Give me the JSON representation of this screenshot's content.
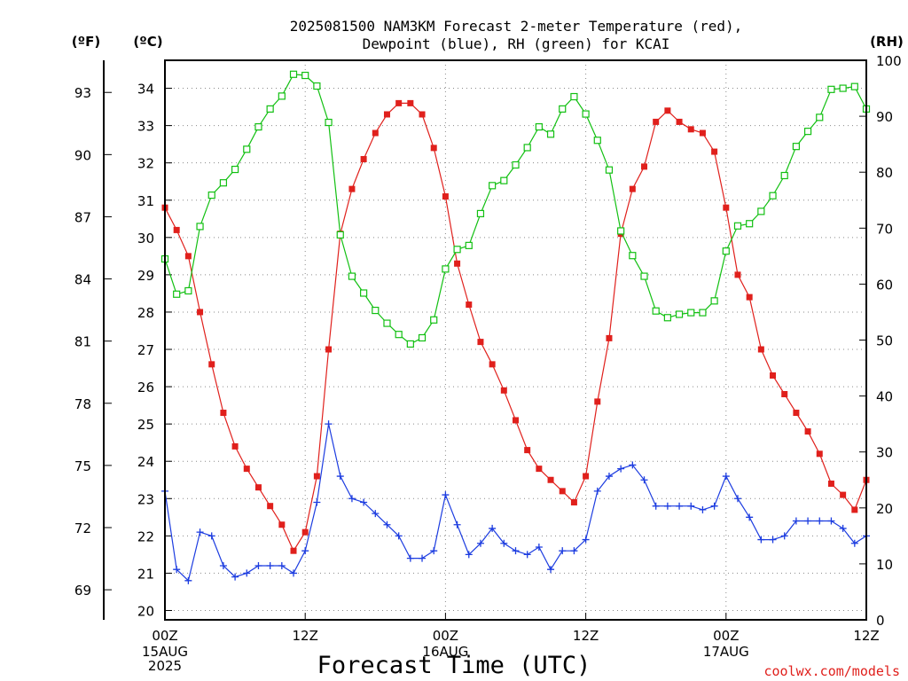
{
  "chart_data": {
    "type": "line",
    "title_line1": "2025081500 NAM3KM Forecast 2-meter Temperature (red),",
    "title_line2": "Dewpoint (blue), RH (green) for KCAI",
    "xlabel": "Forecast Time (UTC)",
    "credit": "coolwx.com/models",
    "units": {
      "fahrenheit": "(ºF)",
      "celsius": "(ºC)",
      "rh": "(RH)"
    },
    "celsius_range": [
      19.75,
      34.75
    ],
    "fahrenheit_ticks": [
      "69",
      "72",
      "75",
      "78",
      "81",
      "84",
      "87",
      "90",
      "93"
    ],
    "celsius_ticks": [
      "20",
      "21",
      "22",
      "23",
      "24",
      "25",
      "26",
      "27",
      "28",
      "29",
      "30",
      "31",
      "32",
      "33",
      "34"
    ],
    "rh_range": [
      0,
      100
    ],
    "rh_ticks": [
      "0",
      "10",
      "20",
      "30",
      "40",
      "50",
      "60",
      "70",
      "80",
      "90",
      "100"
    ],
    "x_range_hours": [
      0,
      60
    ],
    "x_ticks": [
      {
        "hour": 0,
        "line1": "00Z",
        "line2": "15AUG",
        "line3": "2025"
      },
      {
        "hour": 12,
        "line1": "12Z",
        "line2": "",
        "line3": ""
      },
      {
        "hour": 24,
        "line1": "00Z",
        "line2": "16AUG",
        "line3": ""
      },
      {
        "hour": 36,
        "line1": "12Z",
        "line2": "",
        "line3": ""
      },
      {
        "hour": 48,
        "line1": "00Z",
        "line2": "17AUG",
        "line3": ""
      },
      {
        "hour": 60,
        "line1": "12Z",
        "line2": "",
        "line3": ""
      }
    ],
    "grid": true,
    "colors": {
      "temperature": "#e0201c",
      "dewpoint": "#1c3ce0",
      "rh": "#12c012"
    },
    "series": [
      {
        "name": "Temperature",
        "axis": "celsius",
        "marker": "filled-square",
        "values": [
          30.8,
          30.2,
          29.5,
          28.0,
          26.6,
          25.3,
          24.4,
          23.8,
          23.3,
          22.8,
          22.3,
          21.6,
          22.1,
          23.6,
          27.0,
          30.1,
          31.3,
          32.1,
          32.8,
          33.3,
          33.6,
          33.6,
          33.3,
          32.4,
          31.1,
          29.3,
          28.2,
          27.2,
          26.6,
          25.9,
          25.1,
          24.3,
          23.8,
          23.5,
          23.2,
          22.9,
          23.6,
          25.6,
          27.3,
          30.1,
          31.3,
          31.9,
          33.1,
          33.4,
          33.1,
          32.9,
          32.8,
          32.3,
          30.8,
          29.0,
          28.4,
          27.0,
          26.3,
          25.8,
          25.3,
          24.8,
          24.2,
          23.4,
          23.1,
          22.7,
          23.5
        ]
      },
      {
        "name": "Dewpoint",
        "axis": "celsius",
        "marker": "plus",
        "values": [
          23.2,
          21.1,
          20.8,
          22.1,
          22.0,
          21.2,
          20.9,
          21.0,
          21.2,
          21.2,
          21.2,
          21.0,
          21.6,
          22.9,
          25.0,
          23.6,
          23.0,
          22.9,
          22.6,
          22.3,
          22.0,
          21.4,
          21.4,
          21.6,
          23.1,
          22.3,
          21.5,
          21.8,
          22.2,
          21.8,
          21.6,
          21.5,
          21.7,
          21.1,
          21.6,
          21.6,
          21.9,
          23.2,
          23.6,
          23.8,
          23.9,
          23.5,
          22.8,
          22.8,
          22.8,
          22.8,
          22.7,
          22.8,
          23.6,
          23.0,
          22.5,
          21.9,
          21.9,
          22.0,
          22.4,
          22.4,
          22.4,
          22.4,
          22.2,
          21.8,
          22.0
        ]
      },
      {
        "name": "RH",
        "axis": "rh",
        "marker": "open-square",
        "values": [
          64.5,
          58.2,
          58.8,
          70.3,
          75.9,
          78.1,
          80.5,
          84.1,
          88.1,
          91.3,
          93.6,
          97.5,
          97.3,
          95.4,
          88.9,
          68.8,
          61.4,
          58.4,
          55.3,
          53.0,
          51.0,
          49.3,
          50.4,
          53.6,
          62.7,
          66.2,
          66.9,
          72.6,
          77.6,
          78.5,
          81.3,
          84.4,
          88.1,
          86.8,
          91.3,
          93.5,
          90.4,
          85.7,
          80.4,
          69.5,
          65.1,
          61.4,
          55.2,
          54.0,
          54.6,
          54.9,
          54.9,
          57.0,
          65.9,
          70.4,
          70.8,
          73.0,
          75.8,
          79.4,
          84.6,
          87.3,
          89.8,
          94.8,
          95.0,
          95.3,
          91.3
        ]
      }
    ]
  }
}
